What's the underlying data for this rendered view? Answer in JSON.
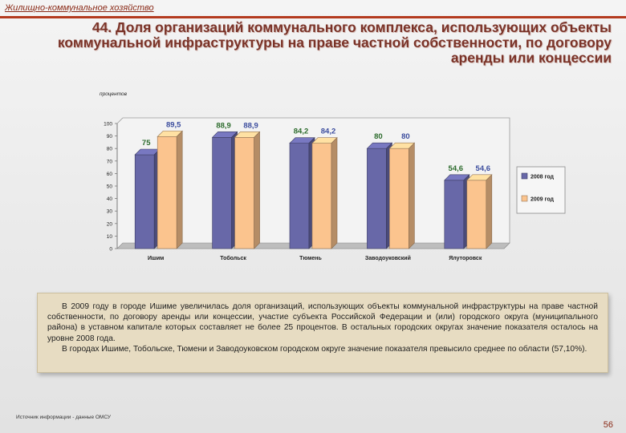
{
  "header": {
    "section_label": "Жилищно-коммунальное хозяйство",
    "title": "44. Доля организаций коммунального комплекса, использующих объекты коммунальной инфраструктуры на праве частной собственности, по договору аренды или концессии"
  },
  "colors": {
    "series_2008": "#6868a8",
    "series_2009": "#fbc48e",
    "label_2008": "#2c6b2c",
    "label_2009": "#3c4d9e",
    "accent": "#b33a1e"
  },
  "chart_data": {
    "type": "bar",
    "ylabel": "процентов",
    "ylim": [
      0,
      100
    ],
    "yticks": [
      0,
      10,
      20,
      30,
      40,
      50,
      60,
      70,
      80,
      90,
      100
    ],
    "categories": [
      "Ишим",
      "Тобольск",
      "Тюмень",
      "Заводоуковский",
      "Ялуторовск"
    ],
    "series": [
      {
        "name": "2008 год",
        "values": [
          75,
          88.9,
          84.2,
          80,
          54.6
        ],
        "labels": [
          "75",
          "88,9",
          "84,2",
          "80",
          "54,6"
        ]
      },
      {
        "name": "2009 год",
        "values": [
          89.5,
          88.9,
          84.2,
          80,
          54.6
        ],
        "labels": [
          "89,5",
          "88,9",
          "84,2",
          "80",
          "54,6"
        ]
      }
    ],
    "grid": false,
    "legend": "right",
    "style": "3d"
  },
  "text_block": {
    "paragraph1": "В 2009 году в городе Ишиме увеличилась доля организаций, использующих объекты коммунальной инфраструктуры на праве частной собственности, по договору аренды или концессии, участие субъекта Российской Федерации и (или) городского округа (муниципального района) в уставном капитале которых составляет не более 25 процентов. В остальных городских округах значение показателя осталось на уровне 2008 года.",
    "paragraph2": "В городах Ишиме, Тобольске, Тюмени и Заводоуковском городском округе значение показателя превысило среднее по области (57,10%)."
  },
  "footer": {
    "source": "Источник информации - данные ОМСУ",
    "page_number": "56"
  }
}
